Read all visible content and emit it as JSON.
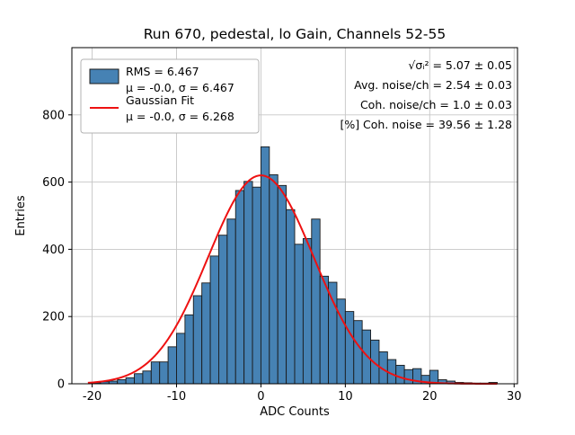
{
  "chart_data": {
    "type": "bar",
    "title": "Run 670, pedestal, lo Gain, Channels 52-55",
    "xlabel": "ADC Counts",
    "ylabel": "Entries",
    "xlim": [
      -22.4,
      30.4
    ],
    "ylim": [
      0,
      1000
    ],
    "xticks": [
      -20,
      -10,
      0,
      10,
      20,
      30
    ],
    "yticks": [
      0,
      200,
      400,
      600,
      800
    ],
    "grid": true,
    "grid_color": "#c6c6c6",
    "bar_color": "#4682b4",
    "bar_edge_color": "#1a1a1a",
    "bins_start": -20,
    "bin_width": 1,
    "counts": [
      3,
      6,
      8,
      12,
      18,
      30,
      38,
      65,
      65,
      110,
      150,
      205,
      262,
      300,
      380,
      442,
      490,
      575,
      602,
      585,
      705,
      622,
      590,
      518,
      415,
      432,
      490,
      320,
      302,
      252,
      215,
      188,
      160,
      130,
      95,
      72,
      55,
      42,
      45,
      25,
      40,
      12,
      8,
      4,
      3,
      2,
      2,
      4
    ],
    "fit": {
      "mu": 0.0,
      "sigma": 6.268,
      "amplitude": 620,
      "color": "#ee1111",
      "range": [
        -20.5,
        28.0
      ]
    },
    "legend": {
      "entries": [
        {
          "handle": "patch",
          "line1": "RMS = 6.467",
          "line2": "μ = -0.0, σ = 6.467"
        },
        {
          "handle": "line",
          "line1": "Gaussian Fit",
          "line2": "μ = -0.0, σ = 6.268"
        }
      ]
    },
    "annotations": [
      "√σᵢ² = 5.07 ± 0.05",
      "Avg. noise/ch = 2.54 ± 0.03",
      "Coh. noise/ch = 1.0 ± 0.03",
      "[%] Coh. noise = 39.56 ± 1.28"
    ]
  }
}
